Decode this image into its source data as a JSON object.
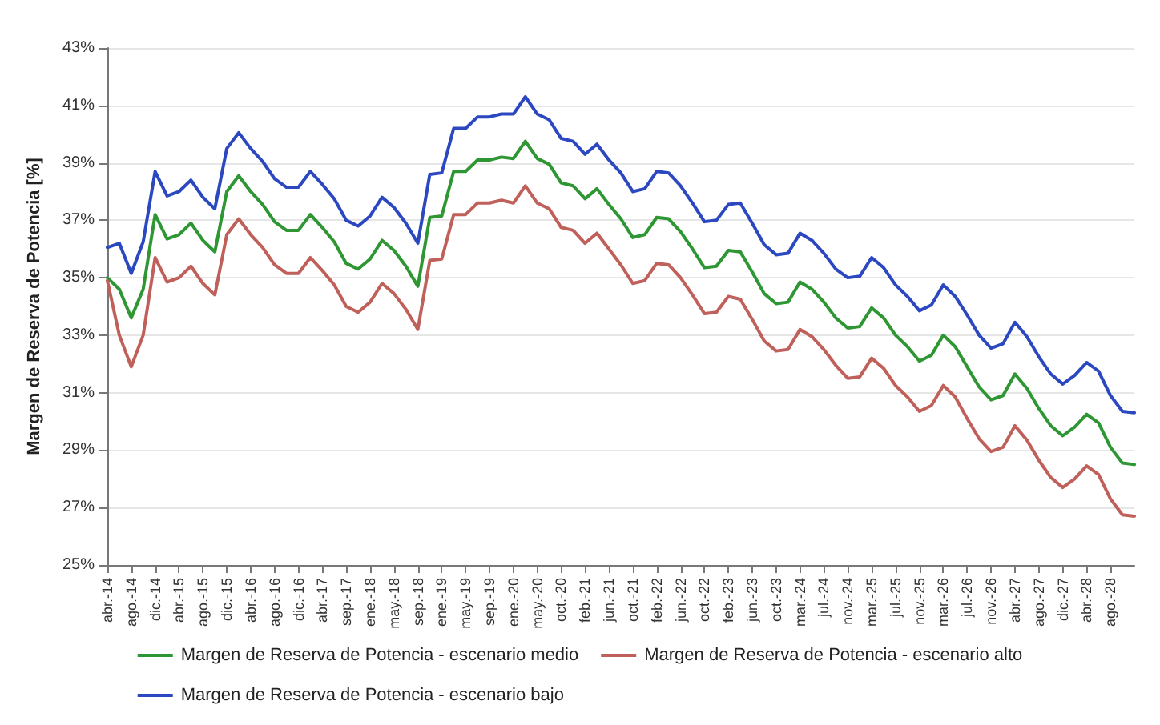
{
  "chart_data": {
    "type": "line",
    "ylabel": "Margen de Reserva de Potencia [%]",
    "categories": [
      "abr.-14",
      null,
      "ago.-14",
      null,
      "dic.-14",
      null,
      "abr.-15",
      null,
      "ago.-15",
      null,
      "dic.-15",
      null,
      "abr.-16",
      null,
      "ago.-16",
      null,
      "dic.-16",
      null,
      "abr.-17",
      null,
      "sep.-17",
      null,
      "ene.-18",
      null,
      "may.-18",
      null,
      "sep.-18",
      null,
      "ene.-19",
      null,
      "may.-19",
      null,
      "sep.-19",
      null,
      "ene.-20",
      null,
      "may.-20",
      null,
      "oct.-20",
      null,
      "feb.-21",
      null,
      "jun.-21",
      null,
      "oct.-21",
      null,
      "feb.-22",
      null,
      "jun.-22",
      null,
      "oct.-22",
      null,
      "feb.-23",
      null,
      "jun.-23",
      null,
      "oct.-23",
      null,
      "mar.-24",
      null,
      "jul.-24",
      null,
      "nov.-24",
      null,
      "mar.-25",
      null,
      "jul.-25",
      null,
      "nov.-25",
      null,
      "mar.-26",
      null,
      "jul.-26",
      null,
      "nov.-26",
      null,
      "abr.-27",
      null,
      "ago.-27",
      null,
      "dic.-27",
      null,
      "abr.-28",
      null,
      "ago.-28",
      null,
      null
    ],
    "series": [
      {
        "name": "Margen de Reserva de Potencia - escenario medio",
        "color": "#2e9632",
        "values": [
          35.0,
          34.6,
          33.6,
          34.6,
          37.2,
          36.35,
          36.5,
          36.9,
          36.3,
          35.9,
          38.0,
          38.55,
          38.0,
          37.55,
          36.95,
          36.65,
          36.65,
          37.2,
          36.75,
          36.25,
          35.5,
          35.3,
          35.65,
          36.3,
          35.95,
          35.4,
          34.7,
          37.1,
          37.15,
          38.7,
          38.7,
          39.1,
          39.1,
          39.2,
          39.15,
          39.75,
          39.15,
          38.95,
          38.3,
          38.2,
          37.75,
          38.1,
          37.55,
          37.05,
          36.4,
          36.5,
          37.1,
          37.05,
          36.6,
          36.0,
          35.35,
          35.4,
          35.95,
          35.9,
          35.2,
          34.45,
          34.1,
          34.15,
          34.85,
          34.6,
          34.15,
          33.6,
          33.25,
          33.3,
          33.95,
          33.6,
          33.0,
          32.6,
          32.1,
          32.3,
          33.0,
          32.6,
          31.9,
          31.2,
          30.75,
          30.9,
          31.65,
          31.15,
          30.45,
          29.85,
          29.5,
          29.8,
          30.25,
          29.95,
          29.1,
          28.55,
          28.5
        ]
      },
      {
        "name": "Margen de Reserva de Potencia - escenario alto",
        "color": "#c0605a",
        "values": [
          34.9,
          33.0,
          31.9,
          33.0,
          35.7,
          34.85,
          35.0,
          35.4,
          34.8,
          34.4,
          36.5,
          37.05,
          36.5,
          36.05,
          35.45,
          35.15,
          35.15,
          35.7,
          35.25,
          34.75,
          34.0,
          33.8,
          34.15,
          34.8,
          34.45,
          33.9,
          33.2,
          35.6,
          35.65,
          37.2,
          37.2,
          37.6,
          37.6,
          37.7,
          37.6,
          38.2,
          37.6,
          37.4,
          36.75,
          36.65,
          36.2,
          36.55,
          36.0,
          35.45,
          34.8,
          34.9,
          35.5,
          35.45,
          35.0,
          34.4,
          33.75,
          33.8,
          34.35,
          34.25,
          33.55,
          32.8,
          32.45,
          32.5,
          33.2,
          32.95,
          32.5,
          31.95,
          31.5,
          31.55,
          32.2,
          31.85,
          31.25,
          30.85,
          30.35,
          30.55,
          31.25,
          30.85,
          30.1,
          29.4,
          28.95,
          29.1,
          29.85,
          29.35,
          28.65,
          28.05,
          27.7,
          28.0,
          28.45,
          28.15,
          27.3,
          26.75,
          26.7
        ]
      },
      {
        "name": "Margen de Reserva de Potencia - escenario bajo",
        "color": "#2c48c0",
        "values": [
          36.05,
          36.2,
          35.15,
          36.25,
          38.7,
          37.85,
          38.0,
          38.4,
          37.8,
          37.4,
          39.5,
          40.05,
          39.5,
          39.05,
          38.45,
          38.15,
          38.15,
          38.7,
          38.25,
          37.75,
          37.0,
          36.8,
          37.15,
          37.8,
          37.45,
          36.9,
          36.2,
          38.6,
          38.65,
          40.2,
          40.2,
          40.6,
          40.6,
          40.7,
          40.7,
          41.3,
          40.7,
          40.5,
          39.85,
          39.75,
          39.3,
          39.65,
          39.1,
          38.65,
          38.0,
          38.1,
          38.7,
          38.65,
          38.2,
          37.6,
          36.95,
          37.0,
          37.55,
          37.6,
          36.9,
          36.15,
          35.8,
          35.85,
          36.55,
          36.3,
          35.85,
          35.3,
          35.0,
          35.05,
          35.7,
          35.35,
          34.75,
          34.35,
          33.85,
          34.05,
          34.75,
          34.35,
          33.7,
          33.0,
          32.55,
          32.7,
          33.45,
          32.95,
          32.25,
          31.65,
          31.3,
          31.6,
          32.05,
          31.75,
          30.9,
          30.35,
          30.3
        ]
      }
    ],
    "ylim": [
      25,
      43
    ],
    "yticks": [
      {
        "value": 25,
        "label": "25%"
      },
      {
        "value": 27,
        "label": "27%"
      },
      {
        "value": 29,
        "label": "29%"
      },
      {
        "value": 31,
        "label": "31%"
      },
      {
        "value": 33,
        "label": "33%"
      },
      {
        "value": 35,
        "label": "35%"
      },
      {
        "value": 37,
        "label": "37%"
      },
      {
        "value": 39,
        "label": "39%"
      },
      {
        "value": 41,
        "label": "41%"
      },
      {
        "value": 43,
        "label": "43%"
      }
    ],
    "grid": "y",
    "legend": "bottom",
    "marker": "none",
    "line_style": "solid"
  }
}
